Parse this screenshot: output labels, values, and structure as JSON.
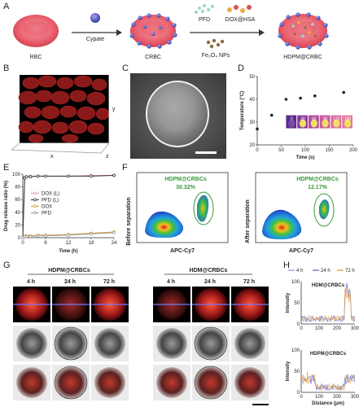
{
  "panels": {
    "A": "A",
    "B": "B",
    "C": "C",
    "D": "D",
    "E": "E",
    "F": "F",
    "G": "G",
    "H": "H"
  },
  "panelA": {
    "cells": [
      "RBC",
      "CRBC",
      "HDPM@CRBC"
    ],
    "steps": {
      "step1": "Cypate",
      "step2_top_left": "PFD",
      "step2_top_right": "DOX@HSA",
      "step2_bottom": "Fe₃O₄ NPs"
    },
    "colors": {
      "rbc": "#e05a6a",
      "dot_blue": "#5a62c8",
      "green_dot": "#7fc8a0",
      "fe3o4": "#8a6a3a"
    }
  },
  "panelB": {
    "axes": {
      "x": "x",
      "y": "y",
      "z": "z"
    }
  },
  "panelD": {
    "chart_data": {
      "type": "scatter",
      "xlabel": "Time (s)",
      "ylabel": "Temperature (°C)",
      "xlim": [
        0,
        200
      ],
      "ylim": [
        20,
        50
      ],
      "xticks": [
        0,
        50,
        100,
        150,
        200
      ],
      "yticks": [
        20,
        30,
        40,
        50
      ],
      "x": [
        0,
        30,
        60,
        90,
        120,
        180
      ],
      "y": [
        27,
        33,
        40,
        40.5,
        41.5,
        43
      ],
      "inset_labels": [
        "0",
        "30",
        "60",
        "90",
        "120",
        "180"
      ]
    }
  },
  "panelE": {
    "chart_data": {
      "type": "line",
      "xlabel": "Time (h)",
      "ylabel": "Drug release ratio (%)",
      "xlim": [
        0,
        24
      ],
      "ylim": [
        0,
        100
      ],
      "xticks": [
        0,
        6,
        12,
        18,
        24
      ],
      "yticks": [
        0,
        20,
        40,
        60,
        80,
        100
      ],
      "x": [
        0,
        0.5,
        1,
        2,
        4,
        6,
        12,
        18,
        24
      ],
      "series": [
        {
          "name": "DOX (L)",
          "color": "#e8a0a0",
          "values": [
            0,
            95,
            96,
            97,
            97,
            97,
            97,
            98,
            98
          ]
        },
        {
          "name": "PFD (L)",
          "color": "#333333",
          "values": [
            0,
            94,
            96,
            96,
            97,
            97,
            97,
            97,
            98
          ]
        },
        {
          "name": "DOX",
          "color": "#e0a030",
          "values": [
            0,
            2,
            3,
            3,
            4,
            4,
            5,
            7,
            9
          ]
        },
        {
          "name": "PFD",
          "color": "#999999",
          "values": [
            0,
            1,
            2,
            2,
            3,
            3,
            4,
            6,
            8
          ]
        }
      ]
    }
  },
  "panelF": {
    "plots": [
      {
        "side": "Before separation",
        "gate_label": "HDPM@CRBCs",
        "percent": "30.32%",
        "xlabel": "APC-Cy7"
      },
      {
        "side": "After separation",
        "gate_label": "HDPM@CRBCs",
        "percent": "12.17%",
        "xlabel": "APC-Cy7"
      }
    ]
  },
  "panelG": {
    "groups": [
      "HDPM@CRBCs",
      "HDM@CRBCs"
    ],
    "timepoints": [
      "4 h",
      "24 h",
      "72 h"
    ]
  },
  "panelH": {
    "legend": [
      "4 h",
      "24 h",
      "72 h"
    ],
    "legend_colors": [
      "#9aa8d8",
      "#6c78d8",
      "#f0a040"
    ],
    "chart_data": [
      {
        "type": "line",
        "title": "HDM@CRBCs",
        "xlabel": "",
        "ylabel": "Intensity",
        "xlim": [
          0,
          300
        ],
        "ylim": [
          0,
          100
        ],
        "xticks": [
          0,
          100,
          200,
          300
        ],
        "yticks": [
          0,
          50,
          100
        ]
      },
      {
        "type": "line",
        "title": "HDPM@CRBCs",
        "xlabel": "Distance (μm)",
        "ylabel": "Intensity",
        "xlim": [
          0,
          300
        ],
        "ylim": [
          0,
          100
        ],
        "xticks": [
          0,
          100,
          200,
          300
        ],
        "yticks": [
          0,
          50,
          100
        ]
      }
    ]
  }
}
